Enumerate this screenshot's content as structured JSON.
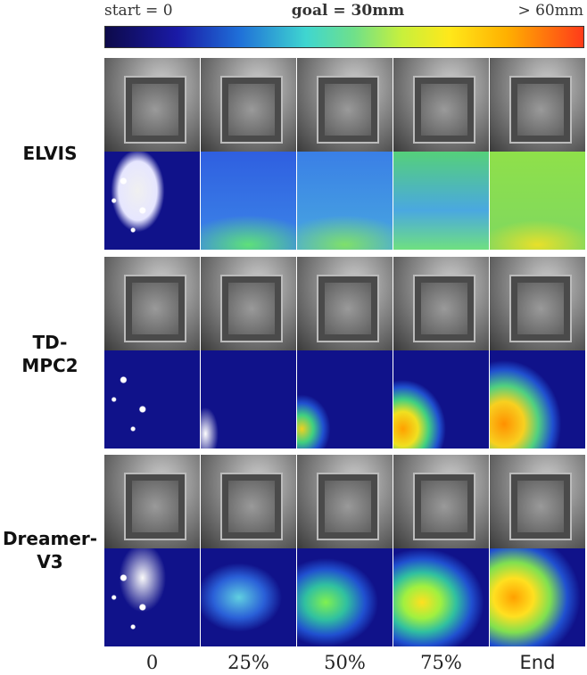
{
  "colorbar": {
    "left_label": "start = 0",
    "center_label": "goal = 30mm",
    "right_label": "> 60mm"
  },
  "rows": [
    {
      "label_lines": [
        "ELVIS"
      ]
    },
    {
      "label_lines": [
        "TD-",
        "MPC2"
      ]
    },
    {
      "label_lines": [
        "Dreamer-",
        "V3"
      ]
    }
  ],
  "columns": [
    "0",
    "25%",
    "50%",
    "75%",
    "End"
  ]
}
